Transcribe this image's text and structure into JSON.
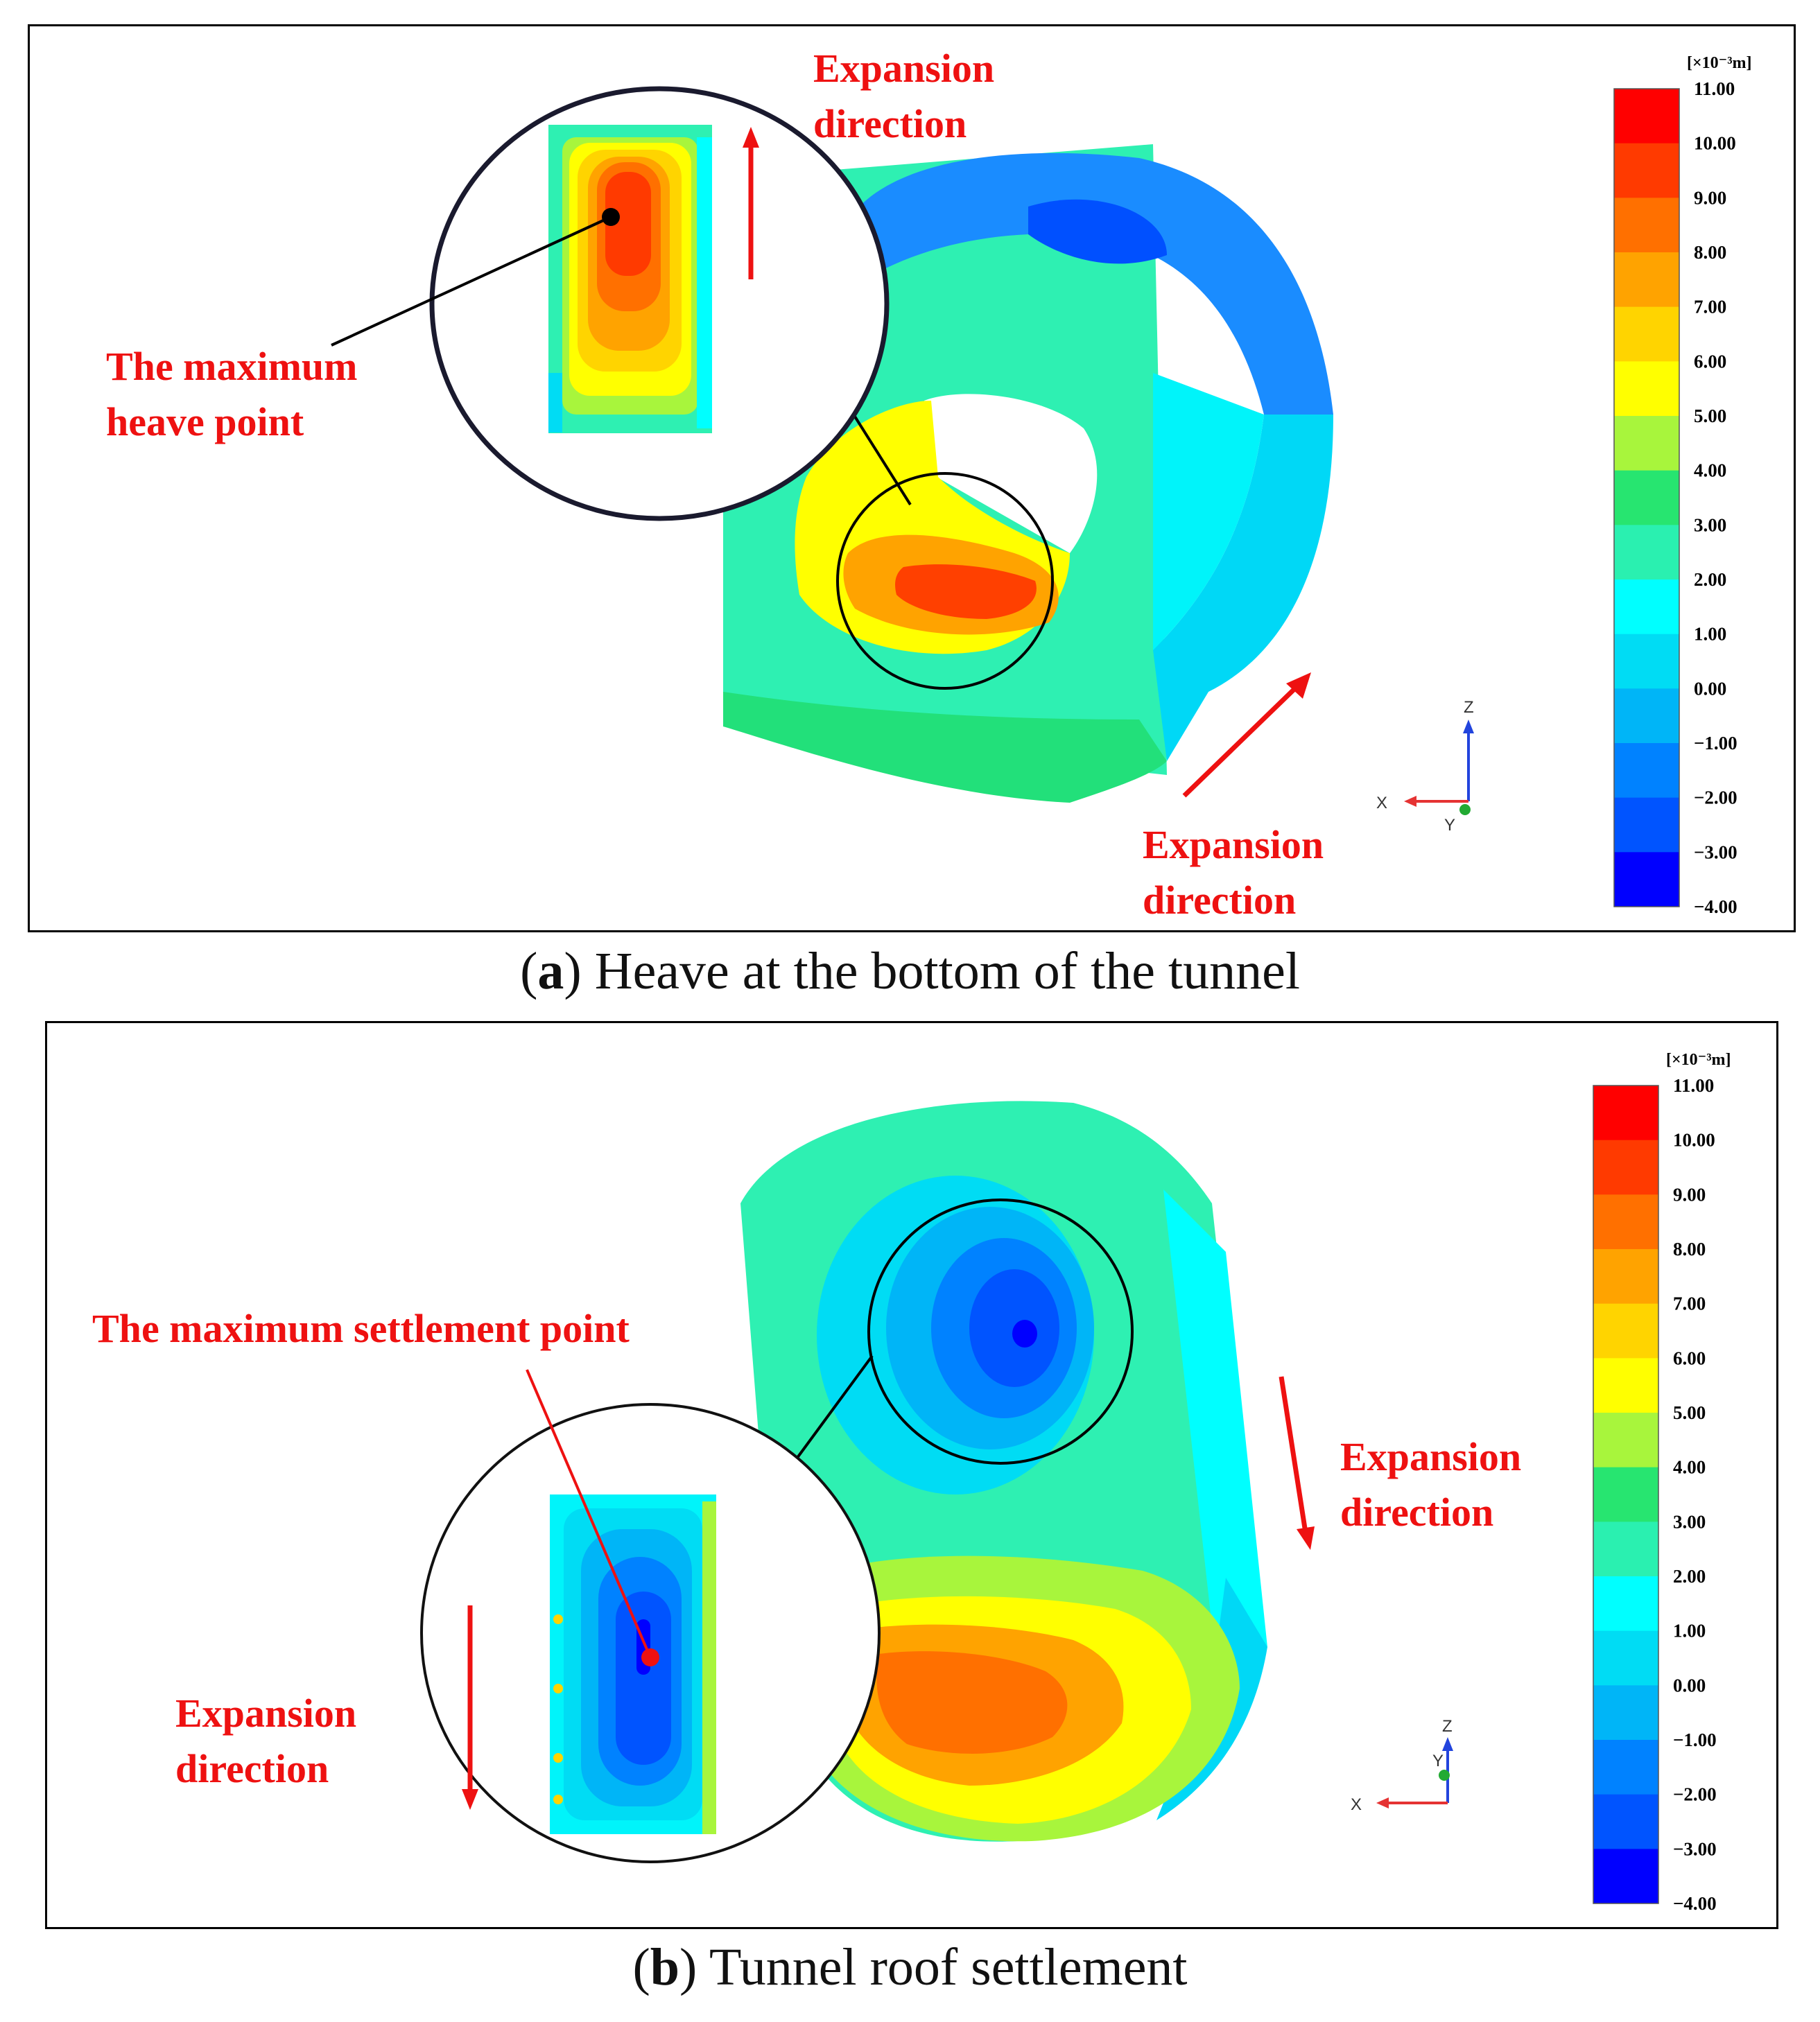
{
  "figure": {
    "panels": [
      {
        "id": "a",
        "caption_letter": "a",
        "caption_text": "Heave at the bottom of the tunnel",
        "labels": {
          "expansion_top": [
            "Expansion",
            "direction"
          ],
          "expansion_bottom": [
            "Expansion",
            "direction"
          ],
          "max_point": [
            "The maximum",
            "heave point"
          ]
        }
      },
      {
        "id": "b",
        "caption_letter": "b",
        "caption_text": "Tunnel roof settlement",
        "labels": {
          "expansion_right": [
            "Expansion",
            "direction"
          ],
          "expansion_inset": [
            "Expansion",
            "direction"
          ],
          "max_point": "The maximum settlement point"
        }
      }
    ],
    "colorbar": {
      "unit": "[×10⁻³m]",
      "ticks": [
        "11.00",
        "10.00",
        "9.00",
        "8.00",
        "7.00",
        "6.00",
        "5.00",
        "4.00",
        "3.00",
        "2.00",
        "1.00",
        "0.00",
        "−1.00",
        "−2.00",
        "−3.00",
        "−4.00"
      ],
      "colors": [
        "#ff0000",
        "#ff3a00",
        "#ff7000",
        "#ffa300",
        "#ffd400",
        "#ffff00",
        "#a8f53c",
        "#27e570",
        "#2af0b0",
        "#00ffff",
        "#00dcf4",
        "#00b5f7",
        "#0082ff",
        "#0054ff",
        "#0000ff"
      ]
    },
    "axes_triad": {
      "x": "X",
      "y": "Y",
      "z": "Z"
    },
    "colors": {
      "annotation_red": "#ee1111",
      "arrow_red": "#ee1111",
      "axis_x": "#e53333",
      "axis_z": "#2244dd",
      "axis_y": "#22aa33"
    }
  }
}
